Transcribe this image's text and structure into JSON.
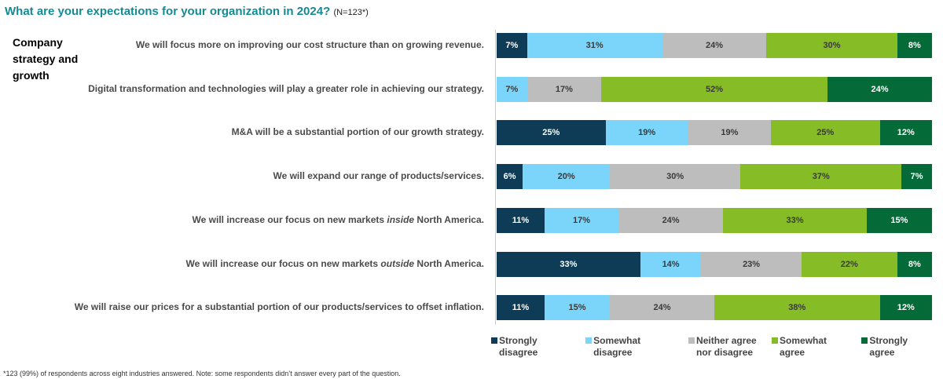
{
  "title": "What are your expectations for your organization in 2024?",
  "sample": "(N=123*)",
  "section": "Company strategy and growth",
  "footnote": "*123 (99%) of respondents across eight industries answered. Note: some respondents didn’t answer every part of the question.",
  "chart_data": {
    "type": "bar",
    "orientation": "horizontal",
    "stacked": "100%",
    "categories": [
      {
        "pre": "We will focus more on improving our cost structure than on growing revenue.",
        "em": "",
        "post": ""
      },
      {
        "pre": "Digital transformation and technologies will play a greater role in achieving our strategy.",
        "em": "",
        "post": ""
      },
      {
        "pre": "M&A will be a substantial portion of our growth strategy.",
        "em": "",
        "post": ""
      },
      {
        "pre": "We will expand our range of products/services.",
        "em": "",
        "post": ""
      },
      {
        "pre": "We will increase our focus on new markets ",
        "em": "inside",
        "post": " North America."
      },
      {
        "pre": "We will increase our focus on new markets ",
        "em": "outside",
        "post": " North America."
      },
      {
        "pre": "We will raise our prices for a substantial portion of our products/services to offset inflation.",
        "em": "",
        "post": ""
      }
    ],
    "series": [
      {
        "name": "Strongly disagree",
        "color": "#0e3b55",
        "text": "#ffffff",
        "values": [
          7,
          0,
          25,
          6,
          11,
          33,
          11
        ]
      },
      {
        "name": "Somewhat disagree",
        "color": "#7bd5fb",
        "text": "#3a3a3a",
        "values": [
          31,
          7,
          19,
          20,
          17,
          14,
          15
        ]
      },
      {
        "name": "Neither agree nor disagree",
        "color": "#bdbdbd",
        "text": "#3a3a3a",
        "values": [
          24,
          17,
          19,
          30,
          24,
          23,
          24
        ]
      },
      {
        "name": "Somewhat agree",
        "color": "#86bc25",
        "text": "#3a3a3a",
        "values": [
          30,
          52,
          25,
          37,
          33,
          22,
          38
        ]
      },
      {
        "name": "Strongly agree",
        "color": "#046a38",
        "text": "#ffffff",
        "values": [
          8,
          24,
          12,
          7,
          15,
          8,
          12
        ]
      }
    ],
    "legend": "bottom",
    "unit": "%",
    "grid": false
  }
}
